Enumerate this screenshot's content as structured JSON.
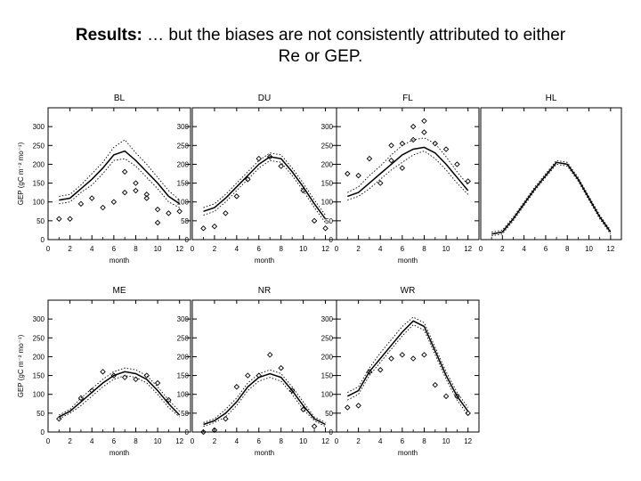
{
  "header": {
    "title_bold": "Results:",
    "title_line1": " … but the biases are not consistently attributed to either",
    "title_line2": "Re or GEP."
  },
  "colors": {
    "axis": "#000000",
    "line": "#000000",
    "marker": "#000000",
    "background": "#ffffff"
  },
  "chart_data": [
    {
      "type": "line",
      "title": "BL",
      "xlabel": "month",
      "ylabel": "GEP (gC m⁻² mo⁻¹)",
      "xlim": [
        0,
        13
      ],
      "ylim": [
        0,
        350
      ],
      "xticks": [
        0,
        2,
        4,
        6,
        8,
        10,
        12
      ],
      "yticks": [
        0,
        50,
        100,
        150,
        200,
        250,
        300
      ],
      "series": [
        {
          "role": "model",
          "x": [
            1,
            2,
            3,
            4,
            5,
            6,
            7,
            8,
            9,
            10,
            11,
            12
          ],
          "y": [
            105,
            110,
            135,
            160,
            190,
            225,
            235,
            210,
            180,
            150,
            115,
            95
          ]
        },
        {
          "role": "model_upper",
          "x": [
            1,
            2,
            3,
            4,
            5,
            6,
            7,
            8,
            9,
            10,
            11,
            12
          ],
          "y": [
            115,
            120,
            145,
            175,
            205,
            245,
            265,
            230,
            200,
            165,
            130,
            105
          ]
        },
        {
          "role": "model_lower",
          "x": [
            1,
            2,
            3,
            4,
            5,
            6,
            7,
            8,
            9,
            10,
            11,
            12
          ],
          "y": [
            95,
            100,
            125,
            145,
            175,
            210,
            215,
            195,
            165,
            135,
            100,
            85
          ]
        },
        {
          "role": "observed",
          "x": [
            1,
            2,
            3,
            4,
            5,
            6,
            7,
            7,
            8,
            8,
            9,
            9,
            10,
            10,
            11,
            12
          ],
          "y": [
            55,
            55,
            95,
            110,
            85,
            100,
            125,
            180,
            130,
            150,
            110,
            120,
            80,
            45,
            70,
            75
          ]
        }
      ]
    },
    {
      "type": "line",
      "title": "DU",
      "xlabel": "month",
      "ylabel": "",
      "xlim": [
        0,
        13
      ],
      "ylim": [
        0,
        350
      ],
      "xticks": [
        0,
        2,
        4,
        6,
        8,
        10,
        12
      ],
      "yticks": [
        0,
        50,
        100,
        150,
        200,
        250,
        300
      ],
      "series": [
        {
          "role": "model",
          "x": [
            1,
            2,
            3,
            4,
            5,
            6,
            7,
            8,
            9,
            10,
            11,
            12
          ],
          "y": [
            75,
            85,
            110,
            140,
            170,
            200,
            220,
            215,
            180,
            140,
            95,
            55
          ]
        },
        {
          "role": "model_upper",
          "x": [
            1,
            2,
            3,
            4,
            5,
            6,
            7,
            8,
            9,
            10,
            11,
            12
          ],
          "y": [
            85,
            95,
            120,
            150,
            180,
            210,
            230,
            225,
            190,
            150,
            105,
            65
          ]
        },
        {
          "role": "model_lower",
          "x": [
            1,
            2,
            3,
            4,
            5,
            6,
            7,
            8,
            9,
            10,
            11,
            12
          ],
          "y": [
            65,
            75,
            100,
            130,
            160,
            190,
            210,
            205,
            170,
            130,
            85,
            45
          ]
        },
        {
          "role": "observed",
          "x": [
            1,
            2,
            3,
            4,
            5,
            6,
            7,
            8,
            10,
            11,
            12
          ],
          "y": [
            30,
            35,
            70,
            115,
            160,
            215,
            220,
            195,
            130,
            50,
            30
          ]
        }
      ]
    },
    {
      "type": "line",
      "title": "FL",
      "xlabel": "month",
      "ylabel": "",
      "xlim": [
        0,
        13
      ],
      "ylim": [
        0,
        350
      ],
      "xticks": [
        0,
        2,
        4,
        6,
        8,
        10,
        12
      ],
      "yticks": [
        0,
        50,
        100,
        150,
        200,
        250,
        300
      ],
      "series": [
        {
          "role": "model",
          "x": [
            1,
            2,
            3,
            4,
            5,
            6,
            7,
            8,
            9,
            10,
            11,
            12
          ],
          "y": [
            115,
            125,
            150,
            175,
            200,
            225,
            240,
            245,
            230,
            200,
            165,
            130
          ]
        },
        {
          "role": "model_upper",
          "x": [
            1,
            2,
            3,
            4,
            5,
            6,
            7,
            8,
            9,
            10,
            11,
            12
          ],
          "y": [
            125,
            140,
            170,
            195,
            225,
            250,
            265,
            270,
            255,
            220,
            180,
            145
          ]
        },
        {
          "role": "model_lower",
          "x": [
            1,
            2,
            3,
            4,
            5,
            6,
            7,
            8,
            9,
            10,
            11,
            12
          ],
          "y": [
            105,
            115,
            135,
            160,
            185,
            205,
            225,
            235,
            215,
            185,
            150,
            120
          ]
        },
        {
          "role": "observed",
          "x": [
            1,
            2,
            3,
            4,
            5,
            5,
            6,
            6,
            7,
            7,
            8,
            8,
            9,
            10,
            11,
            12
          ],
          "y": [
            175,
            170,
            215,
            150,
            250,
            210,
            255,
            190,
            300,
            265,
            315,
            285,
            255,
            240,
            200,
            155
          ]
        }
      ]
    },
    {
      "type": "line",
      "title": "HL",
      "xlabel": "",
      "ylabel": "",
      "xlim": [
        0,
        13
      ],
      "ylim": [
        0,
        350
      ],
      "xticks": [
        0,
        2,
        4,
        6,
        8,
        10,
        12
      ],
      "yticks": [],
      "series": [
        {
          "role": "model",
          "x": [
            1,
            2,
            3,
            4,
            5,
            6,
            7,
            8,
            9,
            10,
            11,
            12
          ],
          "y": [
            15,
            20,
            55,
            95,
            135,
            170,
            205,
            200,
            160,
            110,
            60,
            20
          ]
        },
        {
          "role": "model_upper",
          "x": [
            1,
            2,
            3,
            4,
            5,
            6,
            7,
            8,
            9,
            10,
            11,
            12
          ],
          "y": [
            20,
            25,
            60,
            100,
            140,
            175,
            210,
            205,
            165,
            115,
            65,
            25
          ]
        },
        {
          "role": "model_lower",
          "x": [
            1,
            2,
            3,
            4,
            5,
            6,
            7,
            8,
            9,
            10,
            11,
            12
          ],
          "y": [
            10,
            15,
            50,
            90,
            130,
            165,
            200,
            195,
            155,
            105,
            55,
            15
          ]
        }
      ]
    },
    {
      "type": "line",
      "title": "ME",
      "xlabel": "month",
      "ylabel": "GEP (gC m⁻² mo⁻¹)",
      "xlim": [
        0,
        13
      ],
      "ylim": [
        0,
        350
      ],
      "xticks": [
        0,
        2,
        4,
        6,
        8,
        10,
        12
      ],
      "yticks": [
        0,
        50,
        100,
        150,
        200,
        250,
        300
      ],
      "series": [
        {
          "role": "model",
          "x": [
            1,
            2,
            3,
            4,
            5,
            6,
            7,
            8,
            9,
            10,
            11,
            12
          ],
          "y": [
            40,
            55,
            80,
            105,
            130,
            150,
            160,
            155,
            140,
            110,
            75,
            45
          ]
        },
        {
          "role": "model_upper",
          "x": [
            1,
            2,
            3,
            4,
            5,
            6,
            7,
            8,
            9,
            10,
            11,
            12
          ],
          "y": [
            45,
            60,
            90,
            115,
            140,
            160,
            170,
            165,
            150,
            120,
            85,
            55
          ]
        },
        {
          "role": "model_lower",
          "x": [
            1,
            2,
            3,
            4,
            5,
            6,
            7,
            8,
            9,
            10,
            11,
            12
          ],
          "y": [
            35,
            50,
            70,
            95,
            120,
            140,
            150,
            145,
            130,
            100,
            65,
            40
          ]
        },
        {
          "role": "observed",
          "x": [
            1,
            3,
            4,
            5,
            6,
            7,
            8,
            9,
            10,
            11
          ],
          "y": [
            35,
            90,
            110,
            160,
            150,
            145,
            140,
            150,
            130,
            85
          ]
        }
      ]
    },
    {
      "type": "line",
      "title": "NR",
      "xlabel": "month",
      "ylabel": "",
      "xlim": [
        0,
        13
      ],
      "ylim": [
        0,
        350
      ],
      "xticks": [
        0,
        2,
        4,
        6,
        8,
        10,
        12
      ],
      "yticks": [
        0,
        50,
        100,
        150,
        200,
        250,
        300
      ],
      "series": [
        {
          "role": "model",
          "x": [
            1,
            2,
            3,
            4,
            5,
            6,
            7,
            8,
            9,
            10,
            11,
            12
          ],
          "y": [
            20,
            30,
            50,
            80,
            120,
            145,
            155,
            145,
            110,
            70,
            35,
            20
          ]
        },
        {
          "role": "model_upper",
          "x": [
            1,
            2,
            3,
            4,
            5,
            6,
            7,
            8,
            9,
            10,
            11,
            12
          ],
          "y": [
            25,
            35,
            60,
            90,
            130,
            155,
            165,
            155,
            120,
            80,
            40,
            25
          ]
        },
        {
          "role": "model_lower",
          "x": [
            1,
            2,
            3,
            4,
            5,
            6,
            7,
            8,
            9,
            10,
            11,
            12
          ],
          "y": [
            15,
            25,
            40,
            70,
            110,
            135,
            145,
            135,
            100,
            60,
            30,
            15
          ]
        },
        {
          "role": "observed",
          "x": [
            1,
            2,
            3,
            4,
            5,
            6,
            7,
            8,
            9,
            10,
            11
          ],
          "y": [
            0,
            5,
            35,
            120,
            150,
            150,
            205,
            170,
            110,
            60,
            15
          ]
        }
      ]
    },
    {
      "type": "line",
      "title": "WR",
      "xlabel": "month",
      "ylabel": "",
      "xlim": [
        0,
        13
      ],
      "ylim": [
        0,
        350
      ],
      "xticks": [
        0,
        2,
        4,
        6,
        8,
        10,
        12
      ],
      "yticks": [
        0,
        50,
        100,
        150,
        200,
        250,
        300
      ],
      "series": [
        {
          "role": "model",
          "x": [
            1,
            2,
            3,
            4,
            5,
            6,
            7,
            8,
            9,
            10,
            11,
            12
          ],
          "y": [
            95,
            110,
            160,
            195,
            230,
            265,
            295,
            280,
            215,
            150,
            95,
            55
          ]
        },
        {
          "role": "model_upper",
          "x": [
            1,
            2,
            3,
            4,
            5,
            6,
            7,
            8,
            9,
            10,
            11,
            12
          ],
          "y": [
            105,
            120,
            170,
            210,
            245,
            280,
            305,
            290,
            225,
            160,
            105,
            65
          ]
        },
        {
          "role": "model_lower",
          "x": [
            1,
            2,
            3,
            4,
            5,
            6,
            7,
            8,
            9,
            10,
            11,
            12
          ],
          "y": [
            85,
            100,
            150,
            185,
            220,
            255,
            285,
            270,
            205,
            140,
            85,
            45
          ]
        },
        {
          "role": "observed",
          "x": [
            1,
            2,
            3,
            4,
            5,
            6,
            7,
            8,
            9,
            10,
            11,
            12
          ],
          "y": [
            65,
            70,
            160,
            165,
            195,
            205,
            195,
            205,
            125,
            95,
            95,
            50
          ]
        }
      ]
    }
  ]
}
